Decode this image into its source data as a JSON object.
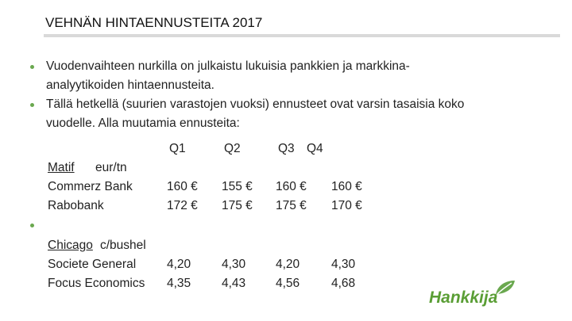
{
  "title": "VEHNÄN HINTAENNUSTEITA 2017",
  "bullets": [
    {
      "lines": [
        "Vuodenvaihteen nurkilla on julkaistu lukuisia pankkien ja markkina-",
        "analyytikoiden hintaennusteita."
      ]
    },
    {
      "lines": [
        "Tällä hetkellä (suurien varastojen vuoksi) ennusteet ovat varsin tasaisia koko",
        "vuodelle. Alla muutamia ennusteita:"
      ]
    }
  ],
  "table": {
    "columns": [
      "Q1",
      "Q2",
      "Q3",
      "Q4"
    ],
    "groups": [
      {
        "market": "Matif",
        "unit": "eur/tn",
        "rows": [
          {
            "name": "Commerz Bank",
            "values": [
              "160 €",
              "155 €",
              "160 €",
              "160 €"
            ]
          },
          {
            "name": "Rabobank",
            "values": [
              "172 €",
              "175 €",
              "175 €",
              "170 €"
            ]
          }
        ]
      },
      {
        "market": "Chicago",
        "unit": "c/bushel",
        "rows": [
          {
            "name": "Societe General",
            "values": [
              "4,20",
              "4,30",
              "4,20",
              "4,30"
            ]
          },
          {
            "name": "Focus Economics",
            "values": [
              "4,35",
              "4,43",
              "4,56",
              "4,68"
            ]
          }
        ]
      }
    ]
  },
  "logo": "Hankkija"
}
